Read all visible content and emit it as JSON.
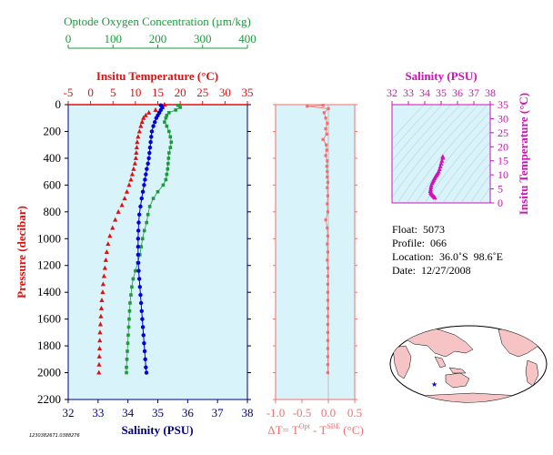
{
  "colors": {
    "oxygen": "#1e9a3c",
    "temperature": "#e01010",
    "salinity_profile": "#0000dd",
    "delta_t": "#f07070",
    "ts": "#d010b8",
    "panel_bg": "#d9f3fa",
    "axis_blue": "#000080"
  },
  "chart_data": [
    {
      "type": "scatter",
      "title": "",
      "ylabel": "Pressure (decibar)",
      "ylim": [
        2200,
        0
      ],
      "y_ticks": [
        "0",
        "200",
        "400",
        "600",
        "800",
        "1000",
        "1200",
        "1400",
        "1600",
        "1800",
        "2000",
        "2200"
      ],
      "grid": false,
      "axes": {
        "oxygen": {
          "label": "Optode Oxygen Concentration (µm/kg)",
          "range": [
            0,
            400
          ],
          "ticks": [
            "0",
            "100",
            "200",
            "300",
            "400"
          ]
        },
        "temperature": {
          "label": "Insitu Temperature (°C)",
          "range": [
            -5,
            35
          ],
          "ticks": [
            "-5",
            "0",
            "5",
            "10",
            "15",
            "20",
            "25",
            "30",
            "35"
          ]
        },
        "salinity": {
          "label": "Salinity (PSU)",
          "range": [
            32,
            38
          ],
          "ticks": [
            "32",
            "33",
            "34",
            "35",
            "36",
            "37",
            "38"
          ]
        }
      },
      "series": [
        {
          "name": "Optode Oxygen Concentration (µm/kg)",
          "axis": "oxygen",
          "points": [
            [
              245,
              5
            ],
            [
              250,
              20
            ],
            [
              240,
              40
            ],
            [
              225,
              60
            ],
            [
              220,
              80
            ],
            [
              218,
              100
            ],
            [
              215,
              130
            ],
            [
              220,
              160
            ],
            [
              225,
              200
            ],
            [
              228,
              240
            ],
            [
              230,
              280
            ],
            [
              228,
              320
            ],
            [
              225,
              360
            ],
            [
              224,
              400
            ],
            [
              223,
              440
            ],
            [
              222,
              480
            ],
            [
              220,
              520
            ],
            [
              218,
              560
            ],
            [
              212,
              600
            ],
            [
              200,
              650
            ],
            [
              190,
              700
            ],
            [
              182,
              760
            ],
            [
              178,
              820
            ],
            [
              175,
              880
            ],
            [
              170,
              940
            ],
            [
              166,
              1000
            ],
            [
              163,
              1060
            ],
            [
              160,
              1120
            ],
            [
              155,
              1180
            ],
            [
              150,
              1240
            ],
            [
              145,
              1300
            ],
            [
              142,
              1360
            ],
            [
              140,
              1420
            ],
            [
              138,
              1480
            ],
            [
              137,
              1540
            ],
            [
              136,
              1600
            ],
            [
              135,
              1660
            ],
            [
              134,
              1720
            ],
            [
              133,
              1780
            ],
            [
              132,
              1840
            ],
            [
              131,
              1900
            ],
            [
              130,
              1960
            ],
            [
              130,
              2000
            ]
          ]
        },
        {
          "name": "Insitu Temperature (°C)",
          "axis": "temperature",
          "points": [
            [
              16.5,
              0
            ],
            [
              16.0,
              20
            ],
            [
              14.5,
              40
            ],
            [
              13.0,
              60
            ],
            [
              12.3,
              80
            ],
            [
              11.8,
              100
            ],
            [
              11.5,
              130
            ],
            [
              11.2,
              160
            ],
            [
              10.9,
              200
            ],
            [
              10.6,
              240
            ],
            [
              10.4,
              280
            ],
            [
              10.3,
              320
            ],
            [
              10.2,
              360
            ],
            [
              10.1,
              400
            ],
            [
              9.9,
              440
            ],
            [
              9.6,
              480
            ],
            [
              9.3,
              520
            ],
            [
              9.0,
              560
            ],
            [
              8.6,
              600
            ],
            [
              8.1,
              650
            ],
            [
              7.6,
              700
            ],
            [
              7.0,
              750
            ],
            [
              6.2,
              800
            ],
            [
              5.5,
              860
            ],
            [
              4.9,
              920
            ],
            [
              4.3,
              980
            ],
            [
              3.9,
              1040
            ],
            [
              3.6,
              1100
            ],
            [
              3.4,
              1160
            ],
            [
              3.2,
              1220
            ],
            [
              3.0,
              1280
            ],
            [
              2.8,
              1340
            ],
            [
              2.7,
              1400
            ],
            [
              2.5,
              1460
            ],
            [
              2.4,
              1520
            ],
            [
              2.3,
              1580
            ],
            [
              2.2,
              1640
            ],
            [
              2.1,
              1700
            ],
            [
              2.05,
              1760
            ],
            [
              2.0,
              1820
            ],
            [
              1.95,
              1880
            ],
            [
              1.9,
              1940
            ],
            [
              1.85,
              2000
            ]
          ]
        },
        {
          "name": "Salinity (PSU)",
          "axis": "salinity",
          "points": [
            [
              35.1,
              5
            ],
            [
              35.15,
              20
            ],
            [
              35.1,
              40
            ],
            [
              35.05,
              60
            ],
            [
              35.0,
              80
            ],
            [
              34.95,
              100
            ],
            [
              34.9,
              130
            ],
            [
              34.85,
              160
            ],
            [
              34.8,
              200
            ],
            [
              34.78,
              240
            ],
            [
              34.76,
              280
            ],
            [
              34.74,
              320
            ],
            [
              34.72,
              360
            ],
            [
              34.7,
              400
            ],
            [
              34.67,
              440
            ],
            [
              34.63,
              480
            ],
            [
              34.6,
              520
            ],
            [
              34.57,
              560
            ],
            [
              34.54,
              600
            ],
            [
              34.5,
              650
            ],
            [
              34.46,
              700
            ],
            [
              34.42,
              760
            ],
            [
              34.38,
              820
            ],
            [
              34.36,
              880
            ],
            [
              34.35,
              940
            ],
            [
              34.34,
              1000
            ],
            [
              34.34,
              1060
            ],
            [
              34.34,
              1120
            ],
            [
              34.35,
              1180
            ],
            [
              34.36,
              1240
            ],
            [
              34.38,
              1300
            ],
            [
              34.4,
              1360
            ],
            [
              34.42,
              1420
            ],
            [
              34.44,
              1480
            ],
            [
              34.46,
              1540
            ],
            [
              34.48,
              1600
            ],
            [
              34.5,
              1660
            ],
            [
              34.52,
              1720
            ],
            [
              34.54,
              1780
            ],
            [
              34.56,
              1840
            ],
            [
              34.58,
              1900
            ],
            [
              34.6,
              1960
            ],
            [
              34.62,
              2000
            ]
          ]
        }
      ]
    },
    {
      "type": "scatter",
      "xlabel": "ΔT= T",
      "xlabel_sup1": "Opt",
      "xlabel_mid": " - T",
      "xlabel_sup2": "SBE",
      "xlabel_end": " (°C)",
      "xlim": [
        -1.0,
        0.5
      ],
      "x_ticks": [
        "-1.0",
        "-0.5",
        "0.0",
        "0.5"
      ],
      "ylim": [
        2200,
        0
      ],
      "series": [
        {
          "name": "",
          "points": [
            [
              -0.1,
              5
            ],
            [
              -0.4,
              12
            ],
            [
              0.0,
              30
            ],
            [
              -0.08,
              60
            ],
            [
              -0.05,
              100
            ],
            [
              -0.02,
              140
            ],
            [
              -0.05,
              180
            ],
            [
              -0.03,
              220
            ],
            [
              -0.1,
              260
            ],
            [
              -0.04,
              300
            ],
            [
              -0.03,
              340
            ],
            [
              -0.05,
              380
            ],
            [
              -0.02,
              420
            ],
            [
              -0.03,
              460
            ],
            [
              -0.02,
              500
            ],
            [
              -0.02,
              540
            ],
            [
              -0.01,
              580
            ],
            [
              -0.02,
              620
            ],
            [
              -0.01,
              680
            ],
            [
              -0.02,
              740
            ],
            [
              -0.01,
              800
            ],
            [
              -0.05,
              860
            ],
            [
              -0.02,
              920
            ],
            [
              -0.01,
              980
            ],
            [
              -0.02,
              1040
            ],
            [
              -0.01,
              1100
            ],
            [
              -0.02,
              1160
            ],
            [
              -0.01,
              1220
            ],
            [
              -0.01,
              1280
            ],
            [
              -0.01,
              1340
            ],
            [
              -0.01,
              1400
            ],
            [
              -0.01,
              1460
            ],
            [
              -0.01,
              1520
            ],
            [
              -0.01,
              1580
            ],
            [
              -0.01,
              1640
            ],
            [
              -0.01,
              1700
            ],
            [
              -0.01,
              1760
            ],
            [
              -0.01,
              1820
            ],
            [
              -0.01,
              1880
            ],
            [
              -0.01,
              1940
            ],
            [
              -0.01,
              2000
            ]
          ]
        }
      ]
    },
    {
      "type": "scatter",
      "xlabel": "Salinity (PSU)",
      "ylabel": "Insitu Temperature (°C)",
      "xlim": [
        32,
        38
      ],
      "ylim": [
        0,
        35
      ],
      "x_ticks": [
        "32",
        "33",
        "34",
        "35",
        "36",
        "37",
        "38"
      ],
      "y_ticks": [
        "0",
        "5",
        "10",
        "15",
        "20",
        "25",
        "30",
        "35"
      ],
      "series": [
        {
          "name": "",
          "points": [
            [
              35.1,
              16.5
            ],
            [
              35.1,
              16.0
            ],
            [
              35.05,
              15.0
            ],
            [
              35.0,
              14.0
            ],
            [
              34.95,
              13.0
            ],
            [
              34.9,
              12.0
            ],
            [
              34.85,
              11.2
            ],
            [
              34.8,
              10.6
            ],
            [
              34.75,
              10.2
            ],
            [
              34.7,
              9.8
            ],
            [
              34.65,
              9.3
            ],
            [
              34.6,
              8.8
            ],
            [
              34.55,
              8.2
            ],
            [
              34.5,
              7.6
            ],
            [
              34.45,
              7.0
            ],
            [
              34.4,
              6.2
            ],
            [
              34.38,
              5.5
            ],
            [
              34.36,
              4.8
            ],
            [
              34.35,
              4.2
            ],
            [
              34.36,
              3.7
            ],
            [
              34.4,
              3.3
            ],
            [
              34.45,
              3.0
            ],
            [
              34.5,
              2.6
            ],
            [
              34.55,
              2.3
            ],
            [
              34.6,
              2.0
            ],
            [
              34.62,
              1.85
            ]
          ]
        }
      ]
    }
  ],
  "info": {
    "float_label": "Float:",
    "float_value": "5073",
    "profile_label": "Profile:",
    "profile_value": "066",
    "location_label": "Location:",
    "location_value": "36.0˚S  98.6˚E",
    "date_label": "Date:",
    "date_value": "12/27/2008"
  },
  "footer_code": "1230382671.0388276",
  "map": {
    "marker_label": "float position"
  }
}
